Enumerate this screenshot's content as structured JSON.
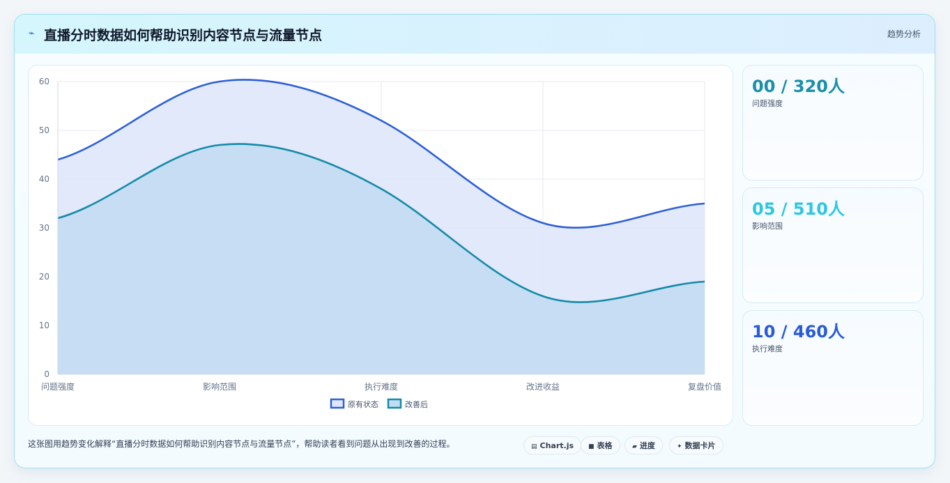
{
  "header": {
    "title": "直播分时数据如何帮助识别内容节点与流量节点",
    "icon": "lightning-icon",
    "tag": "趋势分析"
  },
  "chart_data": {
    "type": "line",
    "categories": [
      "问题强度",
      "影响范围",
      "执行难度",
      "改进收益",
      "复盘价值"
    ],
    "series": [
      {
        "name": "原有状态",
        "values": [
          44,
          60,
          52,
          31,
          35
        ],
        "color": "#2d5fd6",
        "fill": "#dfe8fb"
      },
      {
        "name": "改善后",
        "values": [
          32,
          47,
          38,
          16,
          19
        ],
        "color": "#148aa8",
        "fill": "#c4dcf2"
      }
    ],
    "ylim": [
      0,
      60
    ],
    "yticks": [
      0,
      10,
      20,
      30,
      40,
      50,
      60
    ],
    "grid": true,
    "legend": "bottom",
    "smooth": true
  },
  "kpis": [
    {
      "value": "00 / 320人",
      "label": "问题强度",
      "color": "#1a8fa8"
    },
    {
      "value": "05 / 510人",
      "label": "影响范围",
      "color": "#2ec7e0"
    },
    {
      "value": "10 / 460人",
      "label": "执行难度",
      "color": "#2a5bd6"
    }
  ],
  "caption": "这张图用趋势变化解释“直播分时数据如何帮助识别内容节点与流量节点”，帮助读者看到问题从出现到改善的过程。",
  "pills": [
    {
      "icon": "chart-icon",
      "glyph": "▤",
      "label": "Chart.js"
    },
    {
      "icon": "table-icon",
      "glyph": "■",
      "label": "表格"
    },
    {
      "icon": "progress-icon",
      "glyph": "▰",
      "label": "进度"
    },
    {
      "icon": "sparkle-icon",
      "glyph": "✦",
      "label": "数据卡片"
    }
  ]
}
